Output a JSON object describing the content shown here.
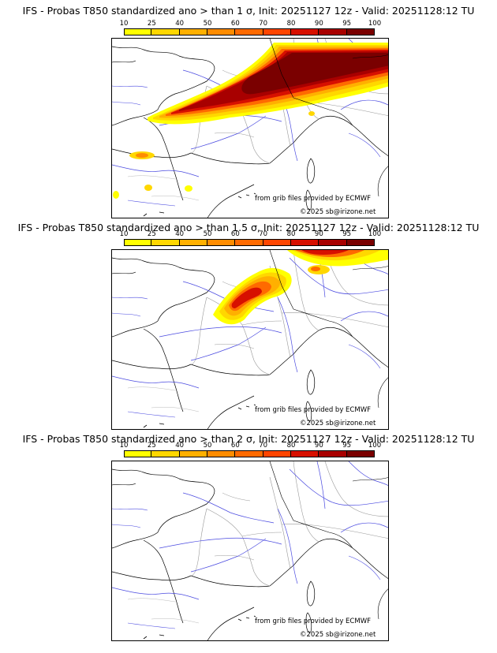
{
  "colorbar": {
    "levels": [
      "10",
      "25",
      "40",
      "50",
      "60",
      "70",
      "80",
      "90",
      "95",
      "100"
    ],
    "colors": [
      "#ffff00",
      "#ffd700",
      "#ffb000",
      "#ff8c00",
      "#ff6a00",
      "#ff4500",
      "#d71000",
      "#a80000",
      "#7a0000"
    ]
  },
  "panels": [
    {
      "title": "IFS - Probas T850  standardized ano > than 1 σ, Init: 20251127 12z - Valid: 20251128:12 TU",
      "credit_source": "from grib files provided by ECMWF",
      "credit_copyright": "©2025 sb@irizone.net"
    },
    {
      "title": "IFS - Probas T850  standardized ano > than 1.5 σ, Init: 20251127 12z - Valid: 20251128:12 TU",
      "credit_source": "from grib files provided by ECMWF",
      "credit_copyright": "©2025 sb@irizone.net"
    },
    {
      "title": "IFS - Probas T850  standardized ano > than 2 σ, Init: 20251127 12z - Valid: 20251128:12 TU",
      "credit_source": "from grib files provided by ECMWF",
      "credit_copyright": "©2025 sb@irizone.net"
    }
  ]
}
